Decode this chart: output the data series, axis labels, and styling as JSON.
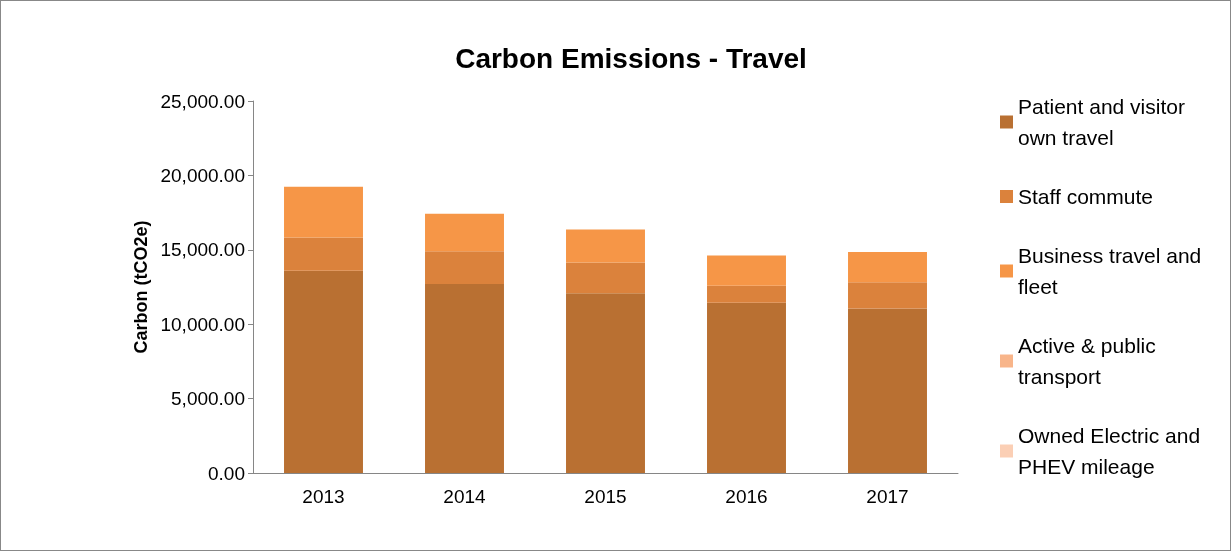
{
  "chart_data": {
    "type": "bar",
    "title": "Carbon Emissions - Travel",
    "ylabel": "Carbon (tCO2e)",
    "categories": [
      "2013",
      "2014",
      "2015",
      "2016",
      "2017"
    ],
    "stacked": true,
    "grid": false,
    "legend": "right",
    "ylim": [
      0,
      25000
    ],
    "yticks": [
      {
        "value": 0,
        "label": "0.00"
      },
      {
        "value": 5000,
        "label": "5,000.00"
      },
      {
        "value": 10000,
        "label": "10,000.00"
      },
      {
        "value": 15000,
        "label": "15,000.00"
      },
      {
        "value": 20000,
        "label": "20,000.00"
      },
      {
        "value": 25000,
        "label": "25,000.00"
      }
    ],
    "series": [
      {
        "name": "Patient and visitor own travel",
        "color": "#b97032",
        "values": [
          13600,
          12710,
          12080,
          11440,
          11060
        ]
      },
      {
        "name": "Staff commute",
        "color": "#db823c",
        "values": [
          2230,
          2190,
          2060,
          1140,
          1760
        ]
      },
      {
        "name": "Business travel and fleet",
        "color": "#f69647",
        "values": [
          3400,
          2530,
          2230,
          2030,
          2040
        ]
      },
      {
        "name": "Active & public transport",
        "color": "#f8b58a",
        "values": [
          0,
          0,
          0,
          0,
          0
        ]
      },
      {
        "name": "Owned Electric and PHEV mileage",
        "color": "#fbcfb5",
        "values": [
          0,
          0,
          0,
          0,
          0
        ]
      }
    ]
  }
}
